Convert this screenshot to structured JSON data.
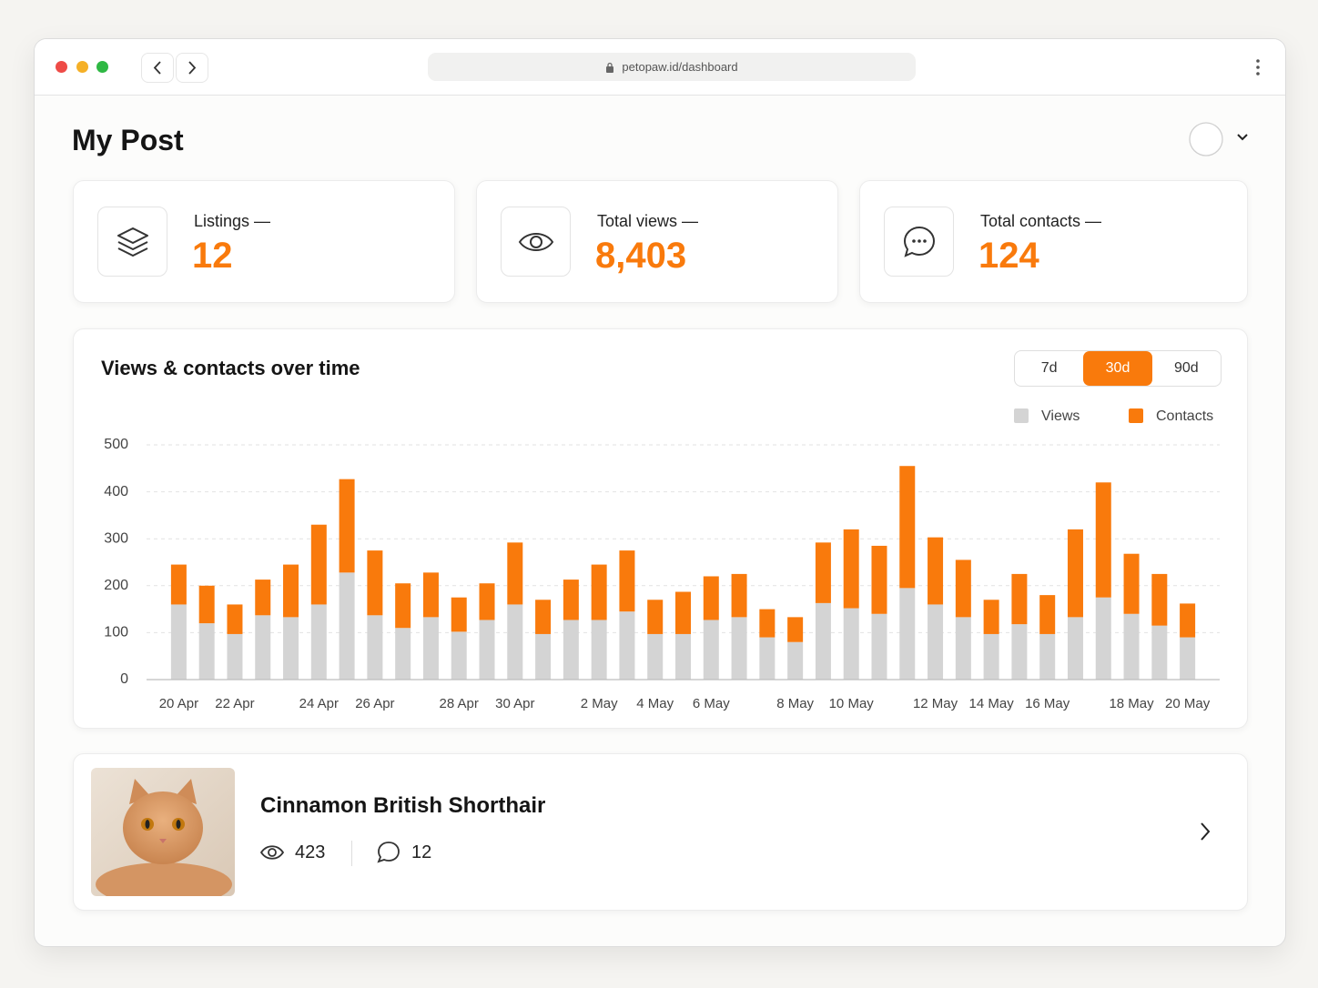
{
  "browser": {
    "url": "petopaw.id/dashboard"
  },
  "header": {
    "title": "My Post"
  },
  "stats": [
    {
      "label": "Listings —",
      "value": "12"
    },
    {
      "label": "Total views —",
      "value": "8,403"
    },
    {
      "label": "Total contacts —",
      "value": "124"
    }
  ],
  "chart_controls": {
    "options": [
      "7d",
      "30d",
      "90d"
    ],
    "selected": 1
  },
  "chart_data": {
    "type": "bar",
    "stacked": true,
    "title": "Views & contacts over time",
    "legend": "top-right",
    "grid": true,
    "categories": [
      "20 Apr",
      null,
      "22 Apr",
      null,
      null,
      "24 Apr",
      null,
      "26 Apr",
      null,
      null,
      "28 Apr",
      null,
      "30 Apr",
      null,
      null,
      "2 May",
      null,
      "4 May",
      null,
      "6 May",
      null,
      null,
      "8 May",
      null,
      "10 May",
      null,
      null,
      "12 May",
      null,
      "14 May",
      null,
      "16 May",
      null,
      null,
      "18 May",
      null,
      "20 May"
    ],
    "series": [
      {
        "name": "Views",
        "color": "#d4d4d4",
        "values": [
          160,
          120,
          97,
          137,
          133,
          160,
          228,
          137,
          110,
          133,
          102,
          127,
          160,
          97,
          127,
          127,
          145,
          97,
          97,
          127,
          133,
          90,
          80,
          163,
          152,
          140,
          195,
          160,
          133,
          97,
          118,
          97,
          133,
          175,
          140,
          115,
          90
        ]
      },
      {
        "name": "Contacts",
        "color": "#f97a0c",
        "values": [
          85,
          80,
          63,
          76,
          112,
          170,
          199,
          138,
          95,
          95,
          73,
          78,
          132,
          73,
          86,
          118,
          130,
          73,
          90,
          93,
          92,
          60,
          53,
          129,
          168,
          145,
          260,
          143,
          122,
          73,
          107,
          83,
          187,
          245,
          128,
          110,
          72
        ]
      }
    ],
    "ylim": [
      0,
      500
    ],
    "yticks": [
      0,
      100,
      200,
      300,
      400,
      500
    ]
  },
  "listing": {
    "title": "Cinnamon British Shorthair",
    "views": "423",
    "contacts": "12"
  }
}
